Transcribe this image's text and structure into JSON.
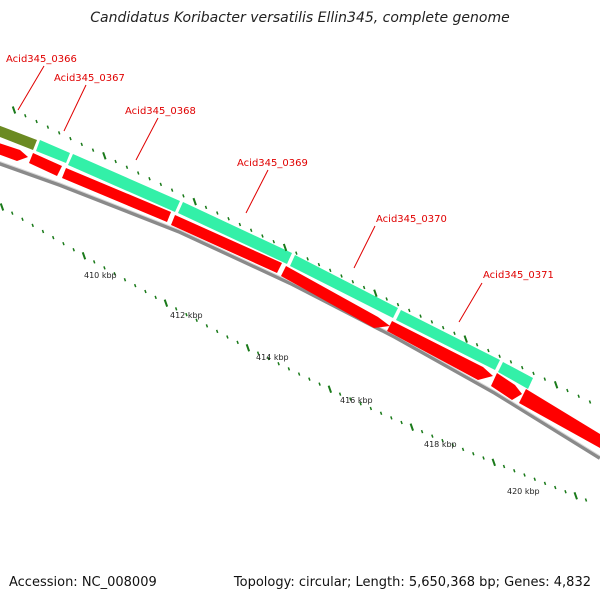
{
  "title": "Candidatus Koribacter versatilis Ellin345, complete genome",
  "footer": {
    "accession": "Accession: NC_008009",
    "summary": "Topology: circular; Length: 5,650,368 bp; Genes: 4,832"
  },
  "colors": {
    "backbone": "#8a8a8a",
    "forward_gene": "#33f0a8",
    "forward_gene_prev": "#6b8a22",
    "reverse_gene": "#ff0000",
    "label": "#e00000",
    "tick": "#1a7a1a"
  },
  "genes": [
    {
      "label": "Acid345_0366"
    },
    {
      "label": "Acid345_0367"
    },
    {
      "label": "Acid345_0368"
    },
    {
      "label": "Acid345_0369"
    },
    {
      "label": "Acid345_0370"
    },
    {
      "label": "Acid345_0371"
    }
  ],
  "ticks": [
    {
      "label": "410 kbp"
    },
    {
      "label": "412 kbp"
    },
    {
      "label": "414 kbp"
    },
    {
      "label": "416 kbp"
    },
    {
      "label": "418 kbp"
    },
    {
      "label": "420 kbp"
    }
  ]
}
